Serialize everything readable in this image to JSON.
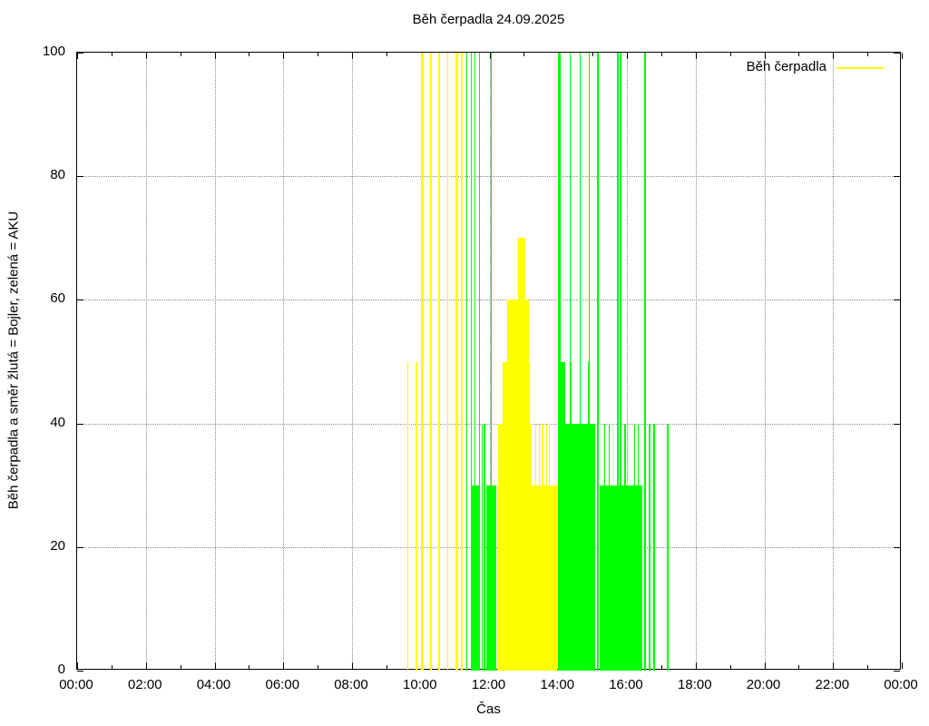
{
  "title": "Běh čerpadla 24.09.2025",
  "axes": {
    "x_label": "Čas",
    "y_label": "Běh čerpadla a směr žlutá = Bojler, zelená = AKU"
  },
  "legend": {
    "label": "Běh čerpadla",
    "color": "#ffff00"
  },
  "chart_data": {
    "type": "bar",
    "title": "Běh čerpadla 24.09.2025",
    "xlabel": "Čas",
    "ylabel": "Běh čerpadla a směr žlutá = Bojler, zelená = AKU",
    "x_unit": "hours_of_day",
    "xlim": [
      0,
      24
    ],
    "ylim": [
      0,
      100
    ],
    "grid": "dotted gray, vertical every 2h, horizontal at 20/40/60/80",
    "legend_position": "top-right inside plot",
    "legend_entries": [
      {
        "label": "Běh čerpadla",
        "color": "#ffff00"
      }
    ],
    "colors": {
      "bojler": "#ffff00",
      "aku": "#00ff00"
    },
    "series_meaning": {
      "bojler": "žlutá = Bojler",
      "aku": "zelená = AKU"
    },
    "x_ticks": {
      "major_hours": [
        0,
        2,
        4,
        6,
        8,
        10,
        12,
        14,
        16,
        18,
        20,
        22,
        24
      ],
      "major_labels": [
        "00:00",
        "02:00",
        "04:00",
        "06:00",
        "08:00",
        "10:00",
        "12:00",
        "14:00",
        "16:00",
        "18:00",
        "20:00",
        "22:00",
        "00:00"
      ],
      "minor_hours": [
        1,
        3,
        5,
        7,
        9,
        11,
        13,
        15,
        17,
        19,
        21,
        23
      ],
      "grid_hours": [
        2,
        4,
        6,
        8,
        10,
        12,
        14,
        16,
        18,
        20,
        22
      ]
    },
    "y_ticks": [
      0,
      20,
      40,
      60,
      80,
      100
    ],
    "y_grid_values": [
      20,
      40,
      60,
      80
    ],
    "segments": [
      {
        "series": "bojler",
        "start": 9.6,
        "end": 9.64,
        "value": 50
      },
      {
        "series": "bojler",
        "start": 9.86,
        "end": 9.9,
        "value": 50
      },
      {
        "series": "bojler",
        "start": 10.0,
        "end": 10.08,
        "value": 100
      },
      {
        "series": "bojler",
        "start": 10.26,
        "end": 10.32,
        "value": 100
      },
      {
        "series": "bojler",
        "start": 10.52,
        "end": 10.56,
        "value": 100
      },
      {
        "series": "bojler",
        "start": 10.76,
        "end": 10.8,
        "value": 100
      },
      {
        "series": "bojler",
        "start": 11.02,
        "end": 11.08,
        "value": 100
      },
      {
        "series": "bojler",
        "start": 11.17,
        "end": 11.21,
        "value": 100
      },
      {
        "series": "bojler",
        "start": 12.22,
        "end": 13.97,
        "value": 30
      },
      {
        "series": "bojler",
        "start": 12.25,
        "end": 13.23,
        "value": 40
      },
      {
        "series": "bojler",
        "start": 12.38,
        "end": 13.17,
        "value": 50
      },
      {
        "series": "bojler",
        "start": 12.51,
        "end": 13.14,
        "value": 60
      },
      {
        "series": "bojler",
        "start": 12.83,
        "end": 13.04,
        "value": 70
      },
      {
        "series": "bojler",
        "start": 13.33,
        "end": 13.36,
        "value": 40
      },
      {
        "series": "bojler",
        "start": 13.43,
        "end": 13.46,
        "value": 40
      },
      {
        "series": "bojler",
        "start": 13.53,
        "end": 13.56,
        "value": 40
      },
      {
        "series": "bojler",
        "start": 13.64,
        "end": 13.67,
        "value": 40
      },
      {
        "series": "bojler",
        "start": 13.72,
        "end": 13.75,
        "value": 40
      },
      {
        "series": "aku",
        "start": 11.32,
        "end": 11.36,
        "value": 100
      },
      {
        "series": "aku",
        "start": 11.45,
        "end": 11.49,
        "value": 100
      },
      {
        "series": "aku",
        "start": 11.56,
        "end": 11.6,
        "value": 100
      },
      {
        "series": "aku",
        "start": 11.69,
        "end": 11.73,
        "value": 100
      },
      {
        "series": "aku",
        "start": 12.03,
        "end": 12.07,
        "value": 100
      },
      {
        "series": "aku",
        "start": 11.48,
        "end": 11.7,
        "value": 30
      },
      {
        "series": "aku",
        "start": 11.91,
        "end": 12.21,
        "value": 30
      },
      {
        "series": "aku",
        "start": 11.77,
        "end": 11.8,
        "value": 40
      },
      {
        "series": "aku",
        "start": 11.84,
        "end": 11.87,
        "value": 40
      },
      {
        "series": "aku",
        "start": 13.99,
        "end": 15.07,
        "value": 40
      },
      {
        "series": "aku",
        "start": 13.99,
        "end": 14.2,
        "value": 50
      },
      {
        "series": "aku",
        "start": 14.33,
        "end": 14.39,
        "value": 50
      },
      {
        "series": "aku",
        "start": 14.86,
        "end": 14.92,
        "value": 50
      },
      {
        "series": "aku",
        "start": 15.2,
        "end": 16.45,
        "value": 30
      },
      {
        "series": "aku",
        "start": 14.0,
        "end": 14.06,
        "value": 100
      },
      {
        "series": "aku",
        "start": 14.33,
        "end": 14.37,
        "value": 100
      },
      {
        "series": "aku",
        "start": 14.62,
        "end": 14.66,
        "value": 100
      },
      {
        "series": "aku",
        "start": 14.88,
        "end": 14.92,
        "value": 100
      },
      {
        "series": "aku",
        "start": 15.14,
        "end": 15.18,
        "value": 100
      },
      {
        "series": "aku",
        "start": 15.72,
        "end": 15.76,
        "value": 100
      },
      {
        "series": "aku",
        "start": 15.8,
        "end": 15.84,
        "value": 100
      },
      {
        "series": "aku",
        "start": 16.51,
        "end": 16.55,
        "value": 100
      },
      {
        "series": "aku",
        "start": 15.33,
        "end": 15.36,
        "value": 40
      },
      {
        "series": "aku",
        "start": 15.46,
        "end": 15.49,
        "value": 40
      },
      {
        "series": "aku",
        "start": 15.93,
        "end": 15.96,
        "value": 40
      },
      {
        "series": "aku",
        "start": 16.2,
        "end": 16.23,
        "value": 40
      },
      {
        "series": "aku",
        "start": 16.31,
        "end": 16.34,
        "value": 40
      },
      {
        "series": "aku",
        "start": 16.64,
        "end": 16.67,
        "value": 40
      },
      {
        "series": "aku",
        "start": 16.77,
        "end": 16.8,
        "value": 40
      },
      {
        "series": "aku",
        "start": 17.17,
        "end": 17.21,
        "value": 40
      }
    ]
  }
}
